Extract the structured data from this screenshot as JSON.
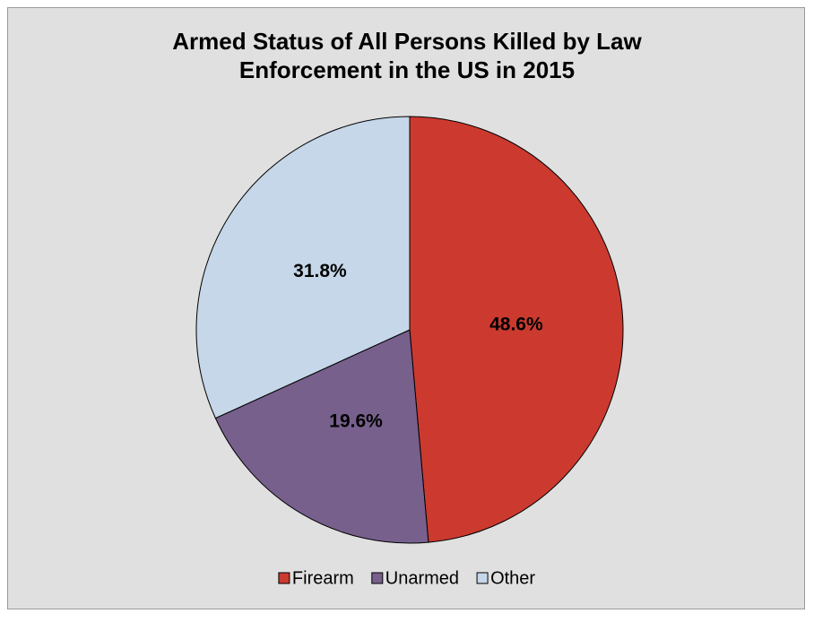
{
  "chart_data": {
    "type": "pie",
    "title": "Armed Status of All Persons Killed by Law Enforcement in the US in 2015",
    "categories": [
      "Firearm",
      "Unarmed",
      "Other"
    ],
    "values": [
      48.6,
      19.6,
      31.8
    ],
    "value_labels": [
      "48.6%",
      "19.6%",
      "31.8%"
    ],
    "colors": [
      "#cc3a2f",
      "#77608c",
      "#c5d7e8"
    ],
    "legend": "bottom"
  }
}
